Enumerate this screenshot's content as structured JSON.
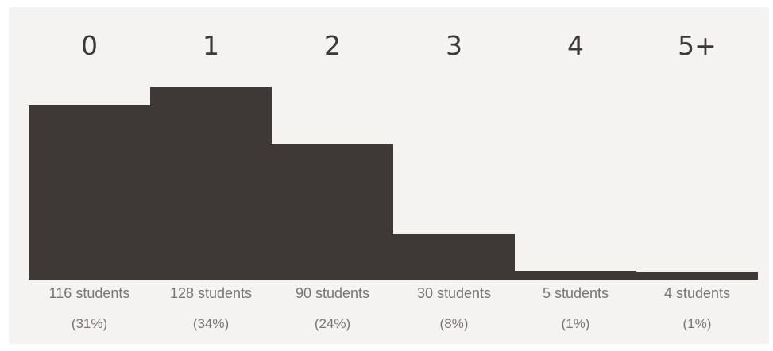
{
  "chart_data": {
    "type": "bar",
    "categories": [
      "0",
      "1",
      "2",
      "3",
      "4",
      "5+"
    ],
    "values": [
      116,
      128,
      90,
      30,
      5,
      4
    ],
    "count_labels": [
      "116 students",
      "128 students",
      "90 students",
      "30 students",
      "5 students",
      "4 students"
    ],
    "percent_labels": [
      "(31%)",
      "(34%)",
      "(24%)",
      "(8%)",
      "(1%)",
      "(1%)"
    ],
    "ylim": [
      0,
      128
    ],
    "grid": false,
    "colors": {
      "bar": "#3e3836",
      "background": "#f4f3f2",
      "label": "#7a7472"
    }
  }
}
